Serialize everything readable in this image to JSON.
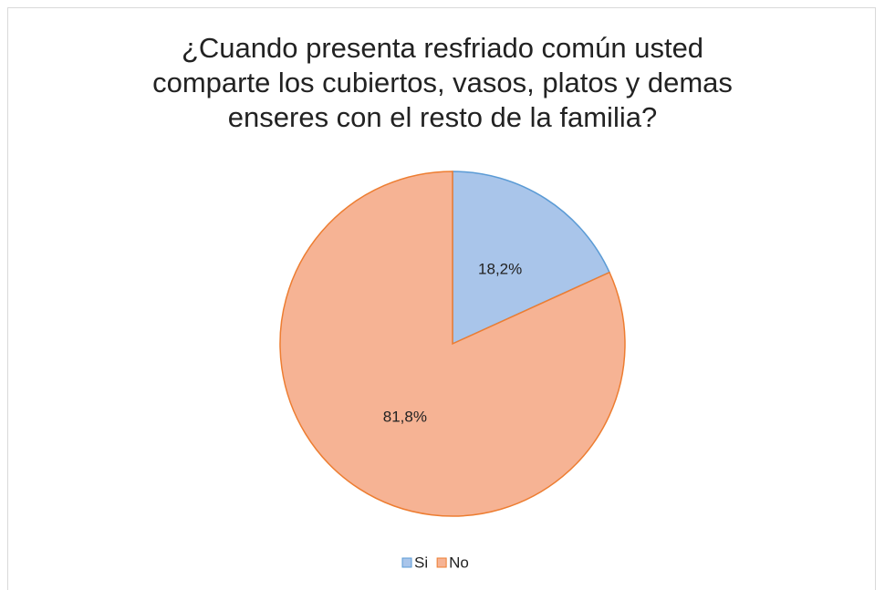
{
  "chart_data": {
    "type": "pie",
    "title": "¿Cuando presenta resfriado común usted comparte los cubiertos, vasos, platos y demas enseres con el resto de la familia?",
    "categories": [
      "Si",
      "No"
    ],
    "values": [
      18.2,
      81.8
    ],
    "value_labels": [
      "18,2%",
      "81,8%"
    ],
    "colors": [
      "#a9c5ea",
      "#f6b394"
    ],
    "edge_colors": [
      "#5b9bd5",
      "#ed7d31"
    ],
    "legend": "bottom"
  }
}
